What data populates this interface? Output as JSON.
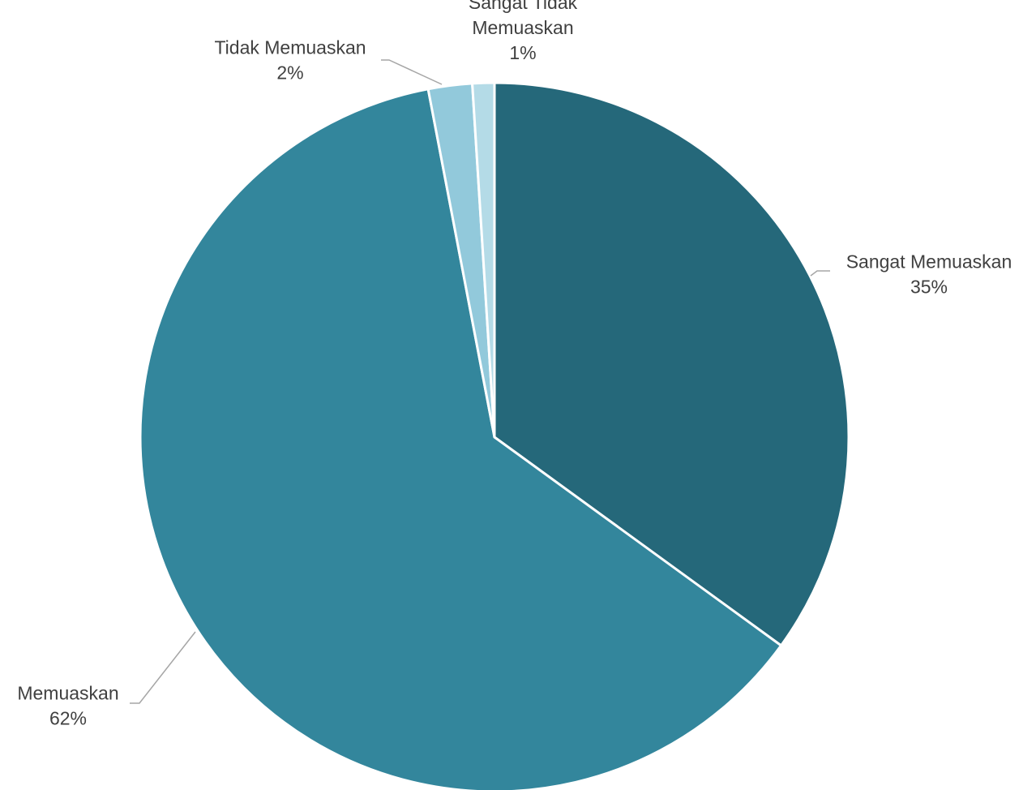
{
  "chart_data": {
    "type": "pie",
    "title": "",
    "legend": "none",
    "start_angle_deg": 0,
    "direction": "clockwise",
    "slices": [
      {
        "label": "Sangat Memuaskan",
        "label_lines": [
          "Sangat Memuaskan"
        ],
        "value": 35,
        "value_label": "35%",
        "color": "#25687a"
      },
      {
        "label": "Memuaskan",
        "label_lines": [
          "Memuaskan"
        ],
        "value": 62,
        "value_label": "62%",
        "color": "#33869c"
      },
      {
        "label": "Tidak Memuaskan",
        "label_lines": [
          "Tidak Memuaskan"
        ],
        "value": 2,
        "value_label": "2%",
        "color": "#92c9db"
      },
      {
        "label": "Sangat Tidak Memuaskan",
        "label_lines": [
          "Sangat Tidak",
          "Memuaskan"
        ],
        "value": 1,
        "value_label": "1%",
        "color": "#b4dbe7"
      }
    ]
  }
}
